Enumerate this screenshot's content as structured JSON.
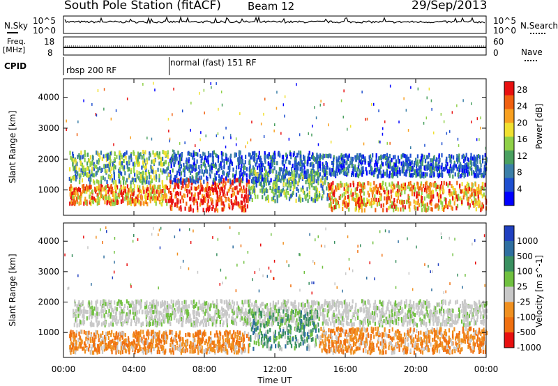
{
  "header": {
    "station": "South Pole Station (fitACF)",
    "beam": "Beam 12",
    "date": "29/Sep/2013"
  },
  "panels": {
    "nsky_label": "N.Sky",
    "nsearch_label": "N.Search",
    "nsky_ticks": [
      "10^5",
      "10^0"
    ],
    "nsearch_ticks": [
      "10^5",
      "10^0"
    ],
    "freq_label": "Freq.",
    "freq_unit": "[MHz]",
    "freq_ticks": [
      "18",
      "8"
    ],
    "nave_label": "Nave",
    "nave_ticks": [
      "60",
      "0"
    ],
    "cpid_label": "CPID",
    "cpid_segments": [
      "rbsp 200 RF",
      "normal (fast) 151 RF"
    ]
  },
  "chart_data": [
    {
      "type": "heatmap",
      "name": "power",
      "ylabel": "Slant Range [km]",
      "xlabel": "Time UT",
      "x_ticks": [
        "00:00",
        "04:00",
        "08:00",
        "12:00",
        "16:00",
        "20:00",
        "00:00"
      ],
      "xlim_hours": [
        0,
        24
      ],
      "y_ticks": [
        1000,
        2000,
        3000,
        4000
      ],
      "ylim": [
        180,
        4600
      ],
      "colorbar": {
        "label": "Power [dB]",
        "ticks": [
          4,
          8,
          12,
          16,
          20,
          24,
          28
        ],
        "range": [
          0,
          30
        ],
        "colors": [
          "#0000ff",
          "#1e4fd0",
          "#3b7fa8",
          "#4aa060",
          "#8fd048",
          "#f0e030",
          "#f8a020",
          "#f06010",
          "#e81010"
        ]
      },
      "bands": [
        {
          "t0": 0.3,
          "t1": 6.0,
          "r0": 1300,
          "r1": 2300,
          "level": "mid"
        },
        {
          "t0": 0.3,
          "t1": 6.0,
          "r0": 600,
          "r1": 1200,
          "level": "high"
        },
        {
          "t0": 6.0,
          "t1": 10.5,
          "r0": 400,
          "r1": 1400,
          "level": "max"
        },
        {
          "t0": 6.0,
          "t1": 14.5,
          "r0": 1300,
          "r1": 2300,
          "level": "low"
        },
        {
          "t0": 10.5,
          "t1": 15.0,
          "r0": 700,
          "r1": 1700,
          "level": "mid"
        },
        {
          "t0": 14.5,
          "t1": 24.0,
          "r0": 1500,
          "r1": 2200,
          "level": "low"
        },
        {
          "t0": 15.0,
          "t1": 24.0,
          "r0": 400,
          "r1": 1300,
          "level": "high"
        }
      ]
    },
    {
      "type": "heatmap",
      "name": "velocity",
      "ylabel": "Slant Range [km]",
      "xlabel": "Time UT",
      "x_ticks": [
        "00:00",
        "04:00",
        "08:00",
        "12:00",
        "16:00",
        "20:00",
        "00:00"
      ],
      "xlim_hours": [
        0,
        24
      ],
      "y_ticks": [
        1000,
        2000,
        3000,
        4000
      ],
      "ylim": [
        180,
        4600
      ],
      "colorbar": {
        "label": "Velocity [m s^-1]",
        "ticks": [
          1000,
          500,
          100,
          25,
          -25,
          -100,
          -500,
          -1000
        ],
        "colors": [
          "#2040c0",
          "#2f6fa0",
          "#3a9060",
          "#70c040",
          "#c8c8c8",
          "#f09020",
          "#f07010",
          "#e81010"
        ]
      },
      "bands": [
        {
          "t0": 0.5,
          "t1": 24.0,
          "r0": 1300,
          "r1": 2100,
          "level": "ground"
        },
        {
          "t0": 0.3,
          "t1": 10.5,
          "r0": 400,
          "r1": 1100,
          "level": "neg"
        },
        {
          "t0": 10.5,
          "t1": 14.5,
          "r0": 500,
          "r1": 1800,
          "level": "pos"
        },
        {
          "t0": 14.5,
          "t1": 24.0,
          "r0": 400,
          "r1": 1200,
          "level": "neg"
        }
      ]
    }
  ],
  "colors": {
    "ground_scatter": "#c8c8c8",
    "axis": "#000000"
  }
}
